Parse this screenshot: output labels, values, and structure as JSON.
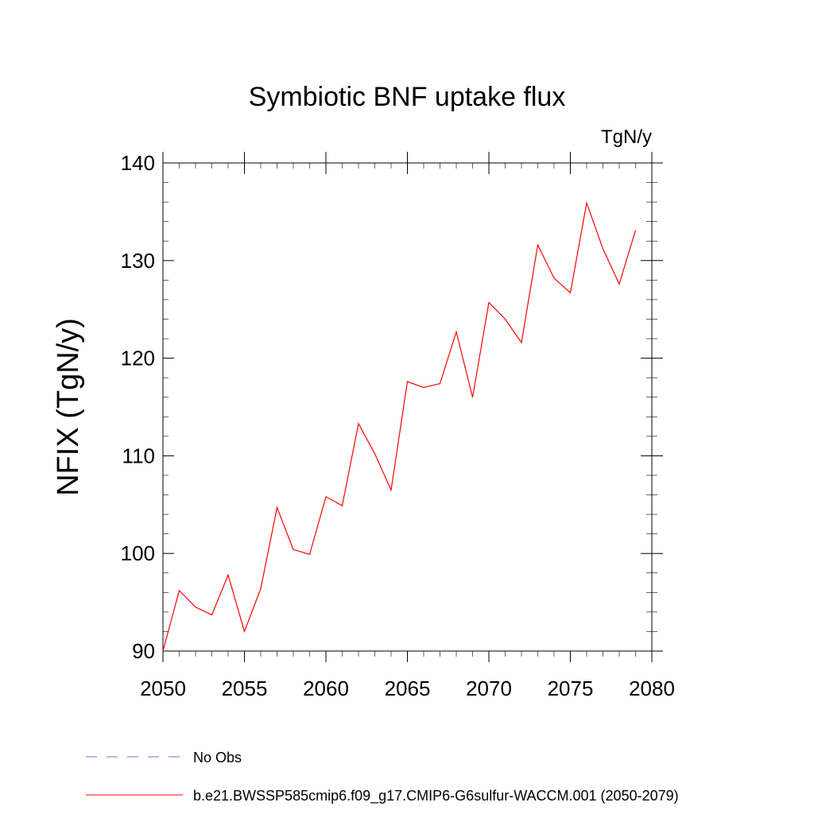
{
  "chart_data": {
    "type": "line",
    "title": "Symbiotic BNF uptake flux",
    "units": "TgN/y",
    "ylabel": "NFIX  (TgN/y)",
    "xlabel": "",
    "xlim": [
      2050,
      2080
    ],
    "ylim": [
      90,
      140
    ],
    "x_ticks": [
      2050,
      2055,
      2060,
      2065,
      2070,
      2075,
      2080
    ],
    "y_ticks": [
      90,
      100,
      110,
      120,
      130,
      140
    ],
    "x_tick_labels": [
      "2050",
      "2055",
      "2060",
      "2065",
      "2070",
      "2075",
      "2080"
    ],
    "y_tick_labels": [
      "90",
      "100",
      "110",
      "120",
      "130",
      "140"
    ],
    "grid": false,
    "series": [
      {
        "name": "b.e21.BWSSP585cmip6.f09_g17.CMIP6-G6sulfur-WACCM.001 (2050-2079)",
        "color": "#ff0000",
        "style": "solid",
        "x": [
          2050,
          2051,
          2052,
          2053,
          2054,
          2055,
          2056,
          2057,
          2058,
          2059,
          2060,
          2061,
          2062,
          2063,
          2064,
          2065,
          2066,
          2067,
          2068,
          2069,
          2070,
          2071,
          2072,
          2073,
          2074,
          2075,
          2076,
          2077,
          2078,
          2079
        ],
        "y": [
          90.0,
          96.2,
          94.5,
          93.7,
          97.8,
          92.0,
          96.4,
          104.7,
          100.4,
          99.9,
          105.8,
          104.9,
          113.3,
          110.2,
          106.5,
          117.6,
          117.0,
          117.4,
          122.7,
          116.0,
          125.7,
          124.0,
          121.6,
          131.6,
          128.2,
          126.7,
          135.9,
          131.2,
          127.6,
          133.1
        ]
      }
    ],
    "legend": {
      "placement": "bottom-left",
      "entries": [
        {
          "label": "No Obs",
          "color": "#7b68ee",
          "style": "dashed"
        },
        {
          "label": "b.e21.BWSSP585cmip6.f09_g17.CMIP6-G6sulfur-WACCM.001 (2050-2079)",
          "color": "#ff0000",
          "style": "solid"
        }
      ]
    }
  }
}
